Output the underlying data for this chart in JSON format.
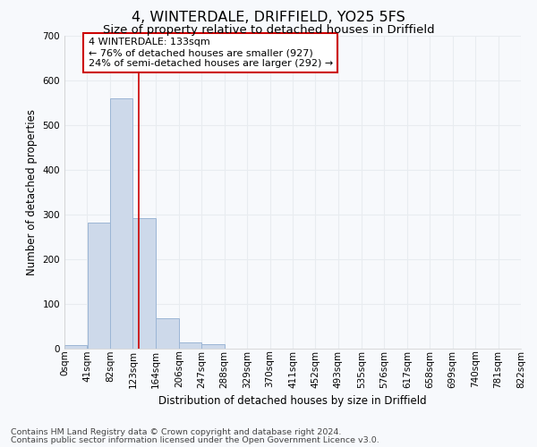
{
  "title1": "4, WINTERDALE, DRIFFIELD, YO25 5FS",
  "title2": "Size of property relative to detached houses in Driffield",
  "xlabel": "Distribution of detached houses by size in Driffield",
  "ylabel": "Number of detached properties",
  "bar_values": [
    8,
    283,
    560,
    293,
    68,
    14,
    10,
    0,
    0,
    0,
    0,
    0,
    0,
    0,
    0,
    0,
    0,
    0,
    0,
    0
  ],
  "bin_edges": [
    0,
    41,
    82,
    123,
    164,
    206,
    247,
    288,
    329,
    370,
    411,
    452,
    493,
    535,
    576,
    617,
    658,
    699,
    740,
    781,
    822
  ],
  "tick_labels": [
    "0sqm",
    "41sqm",
    "82sqm",
    "123sqm",
    "164sqm",
    "206sqm",
    "247sqm",
    "288sqm",
    "329sqm",
    "370sqm",
    "411sqm",
    "452sqm",
    "493sqm",
    "535sqm",
    "576sqm",
    "617sqm",
    "658sqm",
    "699sqm",
    "740sqm",
    "781sqm",
    "822sqm"
  ],
  "bar_color": "#cdd9ea",
  "bar_edge_color": "#9bb5d5",
  "red_line_x": 133,
  "ylim": [
    0,
    700
  ],
  "yticks": [
    0,
    100,
    200,
    300,
    400,
    500,
    600,
    700
  ],
  "annotation_text": "4 WINTERDALE: 133sqm\n← 76% of detached houses are smaller (927)\n24% of semi-detached houses are larger (292) →",
  "annotation_box_facecolor": "#ffffff",
  "annotation_box_edgecolor": "#cc0000",
  "footnote1": "Contains HM Land Registry data © Crown copyright and database right 2024.",
  "footnote2": "Contains public sector information licensed under the Open Government Licence v3.0.",
  "bg_color": "#f7f9fc",
  "grid_color": "#e8ecf0",
  "title1_fontsize": 11.5,
  "title2_fontsize": 9.5,
  "xlabel_fontsize": 8.5,
  "ylabel_fontsize": 8.5,
  "tick_fontsize": 7.5,
  "annot_fontsize": 8,
  "footnote_fontsize": 6.8
}
